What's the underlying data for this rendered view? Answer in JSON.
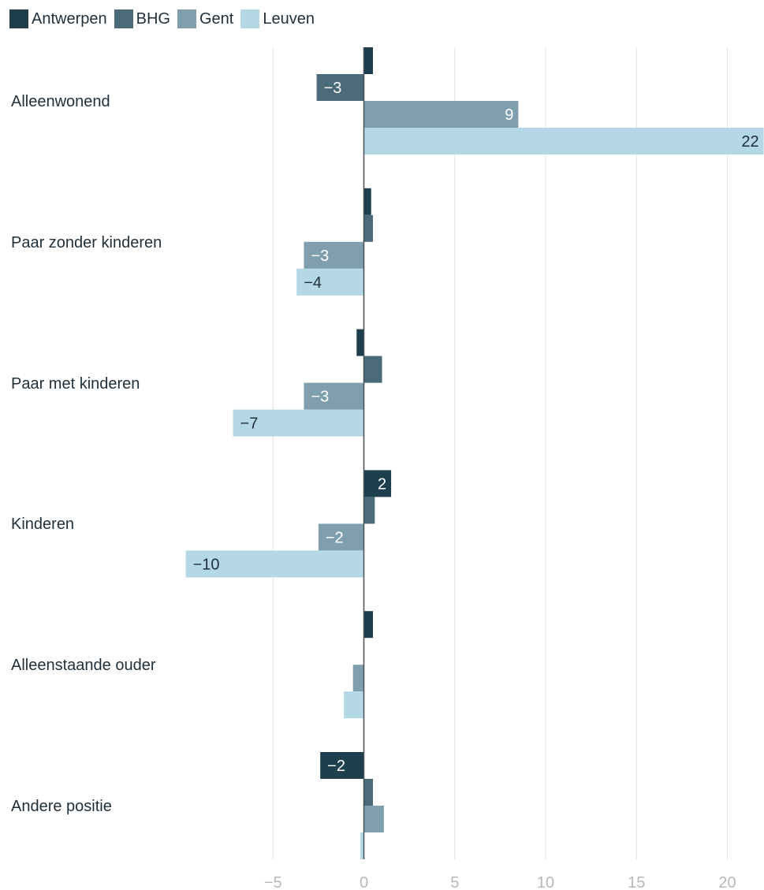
{
  "chart_data": {
    "type": "bar",
    "orientation": "horizontal",
    "categories": [
      "Alleenwonend",
      "Paar zonder kinderen",
      "Paar met kinderen",
      "Kinderen",
      "Alleenstaande ouder",
      "Andere positie"
    ],
    "series": [
      {
        "name": "Antwerpen",
        "color": "#1d3f4e",
        "values": [
          0.5,
          0.4,
          -0.4,
          1.5,
          0.5,
          -2.4
        ],
        "labels": [
          "",
          "",
          "",
          "2",
          "",
          "−2"
        ]
      },
      {
        "name": "BHG",
        "color": "#4b6a7a",
        "values": [
          -2.6,
          0.5,
          1.0,
          0.6,
          0.0,
          0.5
        ],
        "labels": [
          "−3",
          "",
          "",
          "",
          "",
          ""
        ]
      },
      {
        "name": "Gent",
        "color": "#7f9fae",
        "values": [
          8.5,
          -3.3,
          -3.3,
          -2.5,
          -0.6,
          1.1
        ],
        "labels": [
          "9",
          "−3",
          "−3",
          "−2",
          "",
          ""
        ]
      },
      {
        "name": "Leuven",
        "color": "#b4d8e6",
        "values": [
          22.0,
          -3.7,
          -7.2,
          -9.8,
          -1.1,
          -0.2
        ],
        "labels": [
          "22",
          "−4",
          "−7",
          "−10",
          "",
          ""
        ]
      }
    ],
    "xlim": [
      -10,
      22
    ],
    "xticks": [
      -5,
      0,
      5,
      10,
      15,
      20
    ],
    "xtick_labels": [
      "−5",
      "0",
      "5",
      "10",
      "15",
      "20"
    ],
    "grid": true,
    "legend_position": "top-left"
  }
}
